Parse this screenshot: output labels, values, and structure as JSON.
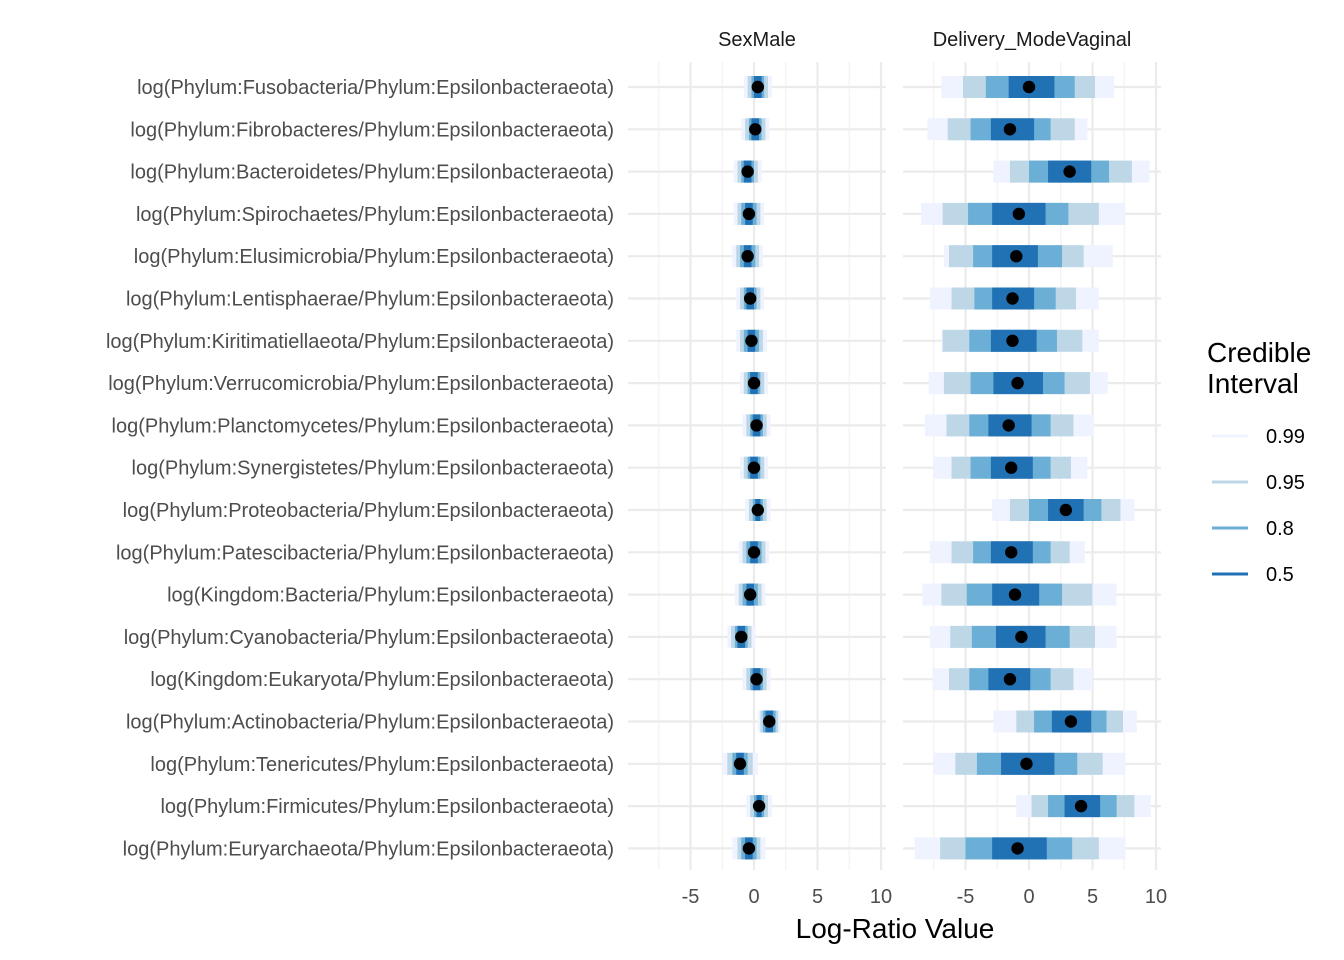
{
  "chart_data": {
    "type": "interval",
    "xlabel": "Log-Ratio Value",
    "xticks": [
      -5,
      0,
      5,
      10
    ],
    "facets": [
      "SexMale",
      "Delivery_ModeVaginal"
    ],
    "categories": [
      "log(Phylum:Fusobacteria/Phylum:Epsilonbacteraeota)",
      "log(Phylum:Fibrobacteres/Phylum:Epsilonbacteraeota)",
      "log(Phylum:Bacteroidetes/Phylum:Epsilonbacteraeota)",
      "log(Phylum:Spirochaetes/Phylum:Epsilonbacteraeota)",
      "log(Phylum:Elusimicrobia/Phylum:Epsilonbacteraeota)",
      "log(Phylum:Lentisphaerae/Phylum:Epsilonbacteraeota)",
      "log(Phylum:Kiritimatiellaeota/Phylum:Epsilonbacteraeota)",
      "log(Phylum:Verrucomicrobia/Phylum:Epsilonbacteraeota)",
      "log(Phylum:Planctomycetes/Phylum:Epsilonbacteraeota)",
      "log(Phylum:Synergistetes/Phylum:Epsilonbacteraeota)",
      "log(Phylum:Proteobacteria/Phylum:Epsilonbacteraeota)",
      "log(Phylum:Patescibacteria/Phylum:Epsilonbacteraeota)",
      "log(Kingdom:Bacteria/Phylum:Epsilonbacteraeota)",
      "log(Phylum:Cyanobacteria/Phylum:Epsilonbacteraeota)",
      "log(Kingdom:Eukaryota/Phylum:Epsilonbacteraeota)",
      "log(Phylum:Actinobacteria/Phylum:Epsilonbacteraeota)",
      "log(Phylum:Tenericutes/Phylum:Epsilonbacteraeota)",
      "log(Phylum:Firmicutes/Phylum:Epsilonbacteraeota)",
      "log(Phylum:Euryarchaeota/Phylum:Epsilonbacteraeota)"
    ],
    "interval_levels": [
      "0.99",
      "0.95",
      "0.8",
      "0.5"
    ],
    "interval_colors": [
      "#eff3ff",
      "#bdd7e7",
      "#6baed6",
      "#2171b5"
    ],
    "legend": {
      "title_lines": [
        "Credible",
        "Interval"
      ],
      "position": "right"
    },
    "panels": [
      {
        "facet": "SexMale",
        "rows": [
          {
            "median": 0.3,
            "i99": [
              -0.8,
              1.4
            ],
            "i95": [
              -0.5,
              1.1
            ],
            "i80": [
              -0.2,
              0.8
            ],
            "i50": [
              0.0,
              0.6
            ]
          },
          {
            "median": 0.1,
            "i99": [
              -1.0,
              1.2
            ],
            "i95": [
              -0.7,
              0.9
            ],
            "i80": [
              -0.4,
              0.6
            ],
            "i50": [
              -0.2,
              0.4
            ]
          },
          {
            "median": -0.5,
            "i99": [
              -1.6,
              0.6
            ],
            "i95": [
              -1.3,
              0.3
            ],
            "i80": [
              -1.0,
              0.0
            ],
            "i50": [
              -0.8,
              -0.2
            ]
          },
          {
            "median": -0.4,
            "i99": [
              -1.6,
              0.8
            ],
            "i95": [
              -1.3,
              0.5
            ],
            "i80": [
              -1.0,
              0.2
            ],
            "i50": [
              -0.7,
              -0.1
            ]
          },
          {
            "median": -0.5,
            "i99": [
              -1.7,
              0.7
            ],
            "i95": [
              -1.4,
              0.4
            ],
            "i80": [
              -1.1,
              0.1
            ],
            "i50": [
              -0.8,
              -0.2
            ]
          },
          {
            "median": -0.3,
            "i99": [
              -1.4,
              0.8
            ],
            "i95": [
              -1.1,
              0.5
            ],
            "i80": [
              -0.8,
              0.2
            ],
            "i50": [
              -0.6,
              0.0
            ]
          },
          {
            "median": -0.2,
            "i99": [
              -1.4,
              1.0
            ],
            "i95": [
              -1.1,
              0.7
            ],
            "i80": [
              -0.8,
              0.4
            ],
            "i50": [
              -0.5,
              0.1
            ]
          },
          {
            "median": 0.0,
            "i99": [
              -1.1,
              1.1
            ],
            "i95": [
              -0.8,
              0.8
            ],
            "i80": [
              -0.5,
              0.5
            ],
            "i50": [
              -0.3,
              0.3
            ]
          },
          {
            "median": 0.2,
            "i99": [
              -0.9,
              1.3
            ],
            "i95": [
              -0.6,
              1.0
            ],
            "i80": [
              -0.3,
              0.7
            ],
            "i50": [
              -0.1,
              0.5
            ]
          },
          {
            "median": 0.0,
            "i99": [
              -1.1,
              1.1
            ],
            "i95": [
              -0.8,
              0.8
            ],
            "i80": [
              -0.5,
              0.5
            ],
            "i50": [
              -0.3,
              0.3
            ]
          },
          {
            "median": 0.3,
            "i99": [
              -0.7,
              1.3
            ],
            "i95": [
              -0.4,
              1.0
            ],
            "i80": [
              -0.1,
              0.7
            ],
            "i50": [
              0.1,
              0.5
            ]
          },
          {
            "median": 0.0,
            "i99": [
              -1.2,
              1.2
            ],
            "i95": [
              -0.9,
              0.9
            ],
            "i80": [
              -0.6,
              0.6
            ],
            "i50": [
              -0.3,
              0.3
            ]
          },
          {
            "median": -0.3,
            "i99": [
              -1.5,
              0.9
            ],
            "i95": [
              -1.2,
              0.6
            ],
            "i80": [
              -0.9,
              0.3
            ],
            "i50": [
              -0.6,
              0.0
            ]
          },
          {
            "median": -1.0,
            "i99": [
              -2.1,
              0.1
            ],
            "i95": [
              -1.8,
              -0.2
            ],
            "i80": [
              -1.5,
              -0.5
            ],
            "i50": [
              -1.3,
              -0.7
            ]
          },
          {
            "median": 0.2,
            "i99": [
              -0.9,
              1.3
            ],
            "i95": [
              -0.6,
              1.0
            ],
            "i80": [
              -0.3,
              0.7
            ],
            "i50": [
              -0.1,
              0.5
            ]
          },
          {
            "median": 1.2,
            "i99": [
              0.3,
              2.1
            ],
            "i95": [
              0.5,
              1.9
            ],
            "i80": [
              0.7,
              1.7
            ],
            "i50": [
              0.9,
              1.5
            ]
          },
          {
            "median": -1.1,
            "i99": [
              -2.5,
              0.3
            ],
            "i95": [
              -2.1,
              -0.1
            ],
            "i80": [
              -1.7,
              -0.5
            ],
            "i50": [
              -1.4,
              -0.8
            ]
          },
          {
            "median": 0.4,
            "i99": [
              -0.6,
              1.4
            ],
            "i95": [
              -0.3,
              1.1
            ],
            "i80": [
              0.0,
              0.8
            ],
            "i50": [
              0.2,
              0.6
            ]
          },
          {
            "median": -0.4,
            "i99": [
              -1.7,
              0.9
            ],
            "i95": [
              -1.3,
              0.5
            ],
            "i80": [
              -1.0,
              0.2
            ],
            "i50": [
              -0.7,
              -0.1
            ]
          }
        ]
      },
      {
        "facet": "Delivery_ModeVaginal",
        "rows": [
          {
            "median": 0.0,
            "i99": [
              -6.9,
              6.7
            ],
            "i95": [
              -5.2,
              5.2
            ],
            "i80": [
              -3.4,
              3.6
            ],
            "i50": [
              -1.6,
              2.0
            ]
          },
          {
            "median": -1.5,
            "i99": [
              -8.0,
              4.6
            ],
            "i95": [
              -6.4,
              3.6
            ],
            "i80": [
              -4.6,
              1.7
            ],
            "i50": [
              -3.0,
              0.4
            ]
          },
          {
            "median": 3.2,
            "i99": [
              -2.8,
              9.5
            ],
            "i95": [
              -1.5,
              8.1
            ],
            "i80": [
              0.0,
              6.3
            ],
            "i50": [
              1.5,
              4.9
            ]
          },
          {
            "median": -0.8,
            "i99": [
              -8.5,
              7.6
            ],
            "i95": [
              -6.8,
              5.5
            ],
            "i80": [
              -4.8,
              3.1
            ],
            "i50": [
              -2.9,
              1.3
            ]
          },
          {
            "median": -1.0,
            "i99": [
              -6.7,
              6.6
            ],
            "i95": [
              -6.3,
              4.3
            ],
            "i80": [
              -4.4,
              2.6
            ],
            "i50": [
              -2.9,
              0.7
            ]
          },
          {
            "median": -1.3,
            "i99": [
              -7.8,
              5.5
            ],
            "i95": [
              -6.1,
              3.7
            ],
            "i80": [
              -4.3,
              2.1
            ],
            "i50": [
              -2.9,
              0.4
            ]
          },
          {
            "median": -1.3,
            "i99": [
              -6.9,
              5.5
            ],
            "i95": [
              -6.8,
              4.2
            ],
            "i80": [
              -4.7,
              2.2
            ],
            "i50": [
              -3.0,
              0.6
            ]
          },
          {
            "median": -0.9,
            "i99": [
              -7.9,
              6.2
            ],
            "i95": [
              -6.7,
              4.8
            ],
            "i80": [
              -4.6,
              2.8
            ],
            "i50": [
              -2.8,
              1.1
            ]
          },
          {
            "median": -1.6,
            "i99": [
              -8.2,
              5.1
            ],
            "i95": [
              -6.5,
              3.5
            ],
            "i80": [
              -4.7,
              1.7
            ],
            "i50": [
              -3.2,
              0.2
            ]
          },
          {
            "median": -1.4,
            "i99": [
              -7.5,
              4.6
            ],
            "i95": [
              -6.1,
              3.3
            ],
            "i80": [
              -4.6,
              1.7
            ],
            "i50": [
              -3.0,
              0.3
            ]
          },
          {
            "median": 2.9,
            "i99": [
              -2.9,
              8.3
            ],
            "i95": [
              -1.5,
              7.2
            ],
            "i80": [
              0.0,
              5.7
            ],
            "i50": [
              1.5,
              4.3
            ]
          },
          {
            "median": -1.4,
            "i99": [
              -7.8,
              4.4
            ],
            "i95": [
              -6.1,
              3.2
            ],
            "i80": [
              -4.4,
              1.7
            ],
            "i50": [
              -3.0,
              0.3
            ]
          },
          {
            "median": -1.1,
            "i99": [
              -8.4,
              6.9
            ],
            "i95": [
              -6.9,
              5.0
            ],
            "i80": [
              -4.9,
              2.6
            ],
            "i50": [
              -2.9,
              0.8
            ]
          },
          {
            "median": -0.6,
            "i99": [
              -7.8,
              6.9
            ],
            "i95": [
              -6.2,
              5.2
            ],
            "i80": [
              -4.5,
              3.2
            ],
            "i50": [
              -2.6,
              1.3
            ]
          },
          {
            "median": -1.5,
            "i99": [
              -7.6,
              5.0
            ],
            "i95": [
              -6.3,
              3.5
            ],
            "i80": [
              -4.7,
              1.7
            ],
            "i50": [
              -3.2,
              0.1
            ]
          },
          {
            "median": 3.3,
            "i99": [
              -2.8,
              8.5
            ],
            "i95": [
              -1.0,
              7.4
            ],
            "i80": [
              0.4,
              6.1
            ],
            "i50": [
              1.8,
              4.9
            ]
          },
          {
            "median": -0.2,
            "i99": [
              -7.5,
              7.6
            ],
            "i95": [
              -5.8,
              5.8
            ],
            "i80": [
              -4.1,
              3.8
            ],
            "i50": [
              -2.2,
              2.0
            ]
          },
          {
            "median": 4.1,
            "i99": [
              -1.0,
              9.6
            ],
            "i95": [
              0.2,
              8.3
            ],
            "i80": [
              1.5,
              6.9
            ],
            "i50": [
              2.8,
              5.6
            ]
          },
          {
            "median": -0.9,
            "i99": [
              -9.0,
              7.6
            ],
            "i95": [
              -7.0,
              5.5
            ],
            "i80": [
              -5.0,
              3.4
            ],
            "i50": [
              -2.9,
              1.4
            ]
          }
        ]
      }
    ]
  }
}
